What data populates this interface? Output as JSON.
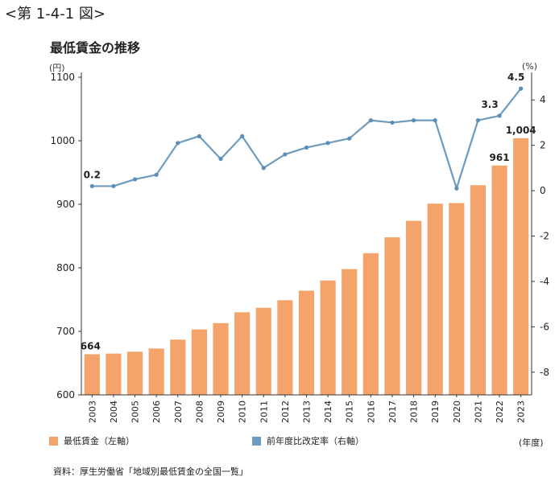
{
  "figure_label": "<第 1-4-1 図>",
  "chart_title": "最低賃金の推移",
  "units": {
    "left": "(円)",
    "right": "(%)",
    "x": "(年度)"
  },
  "source": "資料：厚生労働省「地域別最低賃金の全国一覧」",
  "colors": {
    "bar": "#f4a46a",
    "line": "#6d9cc0",
    "marker": "#5b8db5",
    "axis": "#333333"
  },
  "legend": {
    "bar_label": "最低賃金（左軸）",
    "line_label": "前年度比改定率（右軸）"
  },
  "chart_data": {
    "type": "bar+line",
    "categories": [
      "2003",
      "2004",
      "2005",
      "2006",
      "2007",
      "2008",
      "2009",
      "2010",
      "2011",
      "2012",
      "2013",
      "2014",
      "2015",
      "2016",
      "2017",
      "2018",
      "2019",
      "2020",
      "2021",
      "2022",
      "2023"
    ],
    "series": [
      {
        "name": "最低賃金（左軸）",
        "type": "bar",
        "axis": "left",
        "values": [
          664,
          665,
          668,
          673,
          687,
          703,
          713,
          730,
          737,
          749,
          764,
          780,
          798,
          823,
          848,
          874,
          901,
          902,
          930,
          961,
          1004
        ]
      },
      {
        "name": "前年度比改定率（右軸）",
        "type": "line",
        "axis": "right",
        "values": [
          0.2,
          0.2,
          0.5,
          0.7,
          2.1,
          2.4,
          1.4,
          2.4,
          1.0,
          1.6,
          1.9,
          2.1,
          2.3,
          3.1,
          3.0,
          3.1,
          3.1,
          0.1,
          3.1,
          3.3,
          4.5
        ]
      }
    ],
    "data_labels": {
      "bars": [
        {
          "index": 0,
          "text": "664"
        },
        {
          "index": 19,
          "text": "961"
        },
        {
          "index": 20,
          "text": "1,004"
        }
      ],
      "line": [
        {
          "index": 0,
          "text": "0.2"
        },
        {
          "index": 19,
          "text": "3.3"
        },
        {
          "index": 20,
          "text": "4.5"
        }
      ]
    },
    "left_axis": {
      "min": 600,
      "max": 1100,
      "ticks": [
        600,
        700,
        800,
        900,
        1000,
        1100
      ]
    },
    "right_axis": {
      "min": -9,
      "max": 5,
      "ticks": [
        4,
        2,
        0,
        -2,
        -4,
        -6,
        -8
      ]
    },
    "grid": false,
    "legend_position": "bottom"
  }
}
